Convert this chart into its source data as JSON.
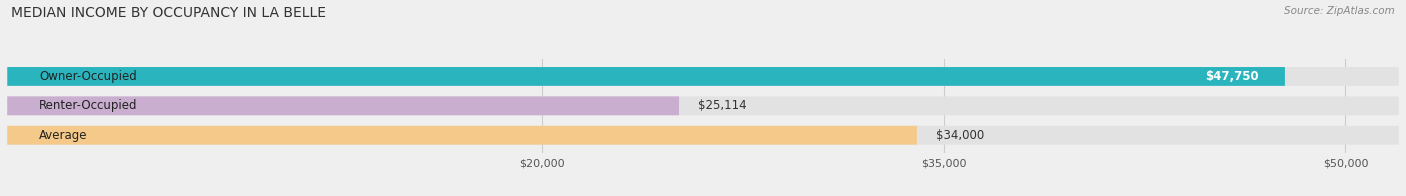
{
  "title": "MEDIAN INCOME BY OCCUPANCY IN LA BELLE",
  "source": "Source: ZipAtlas.com",
  "categories": [
    "Owner-Occupied",
    "Renter-Occupied",
    "Average"
  ],
  "values": [
    47750,
    25114,
    34000
  ],
  "bar_colors": [
    "#2ab5be",
    "#c9aed0",
    "#f5c98a"
  ],
  "bar_labels": [
    "$47,750",
    "$25,114",
    "$34,000"
  ],
  "label_colors": [
    "#ffffff",
    "#555555",
    "#555555"
  ],
  "label_inside": [
    true,
    false,
    false
  ],
  "xlim": [
    0,
    52000
  ],
  "xticks": [
    20000,
    35000,
    50000
  ],
  "xtick_labels": [
    "$20,000",
    "$35,000",
    "$50,000"
  ],
  "background_color": "#efefef",
  "bar_background_color": "#e2e2e2",
  "title_fontsize": 10,
  "source_fontsize": 7.5,
  "label_fontsize": 8.5,
  "category_fontsize": 8.5,
  "tick_fontsize": 8
}
